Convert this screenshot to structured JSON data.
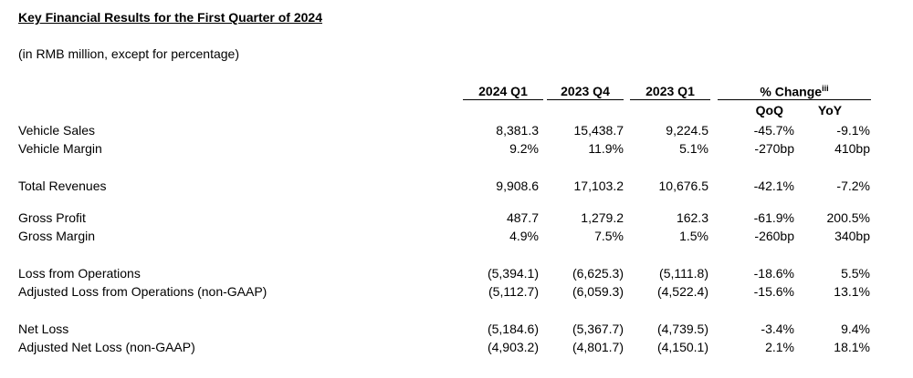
{
  "title": "Key Financial Results for the First Quarter of 2024",
  "subtitle": "(in RMB million, except for percentage)",
  "columns": {
    "q1_2024": "2024 Q1",
    "q4_2023": "2023 Q4",
    "q1_2023": "2023 Q1",
    "pct_change": "% Change",
    "pct_change_note": "iii",
    "qoq": "QoQ",
    "yoy": "YoY"
  },
  "rows": [
    {
      "label": "Vehicle Sales",
      "q1_2024": "8,381.3",
      "q4_2023": "15,438.7",
      "q1_2023": "9,224.5",
      "qoq": "-45.7%",
      "yoy": "-9.1%"
    },
    {
      "label": "Vehicle Margin",
      "q1_2024": "9.2%",
      "q4_2023": "11.9%",
      "q1_2023": "5.1%",
      "qoq": "-270bp",
      "yoy": "410bp"
    },
    {
      "label": "Total Revenues",
      "q1_2024": "9,908.6",
      "q4_2023": "17,103.2",
      "q1_2023": "10,676.5",
      "qoq": "-42.1%",
      "yoy": "-7.2%"
    },
    {
      "label": "Gross Profit",
      "q1_2024": "487.7",
      "q4_2023": "1,279.2",
      "q1_2023": "162.3",
      "qoq": "-61.9%",
      "yoy": "200.5%"
    },
    {
      "label": "Gross Margin",
      "q1_2024": "4.9%",
      "q4_2023": "7.5%",
      "q1_2023": "1.5%",
      "qoq": "-260bp",
      "yoy": "340bp"
    },
    {
      "label": "Loss from Operations",
      "q1_2024": "(5,394.1)",
      "q4_2023": "(6,625.3)",
      "q1_2023": "(5,111.8)",
      "qoq": "-18.6%",
      "yoy": "5.5%"
    },
    {
      "label": "Adjusted Loss from Operations (non-GAAP)",
      "q1_2024": "(5,112.7)",
      "q4_2023": "(6,059.3)",
      "q1_2023": "(4,522.4)",
      "qoq": "-15.6%",
      "yoy": "13.1%"
    },
    {
      "label": "Net Loss",
      "q1_2024": "(5,184.6)",
      "q4_2023": "(5,367.7)",
      "q1_2023": "(4,739.5)",
      "qoq": "-3.4%",
      "yoy": "9.4%"
    },
    {
      "label": "Adjusted Net Loss (non-GAAP)",
      "q1_2024": "(4,903.2)",
      "q4_2023": "(4,801.7)",
      "q1_2023": "(4,150.1)",
      "qoq": "2.1%",
      "yoy": "18.1%"
    }
  ]
}
